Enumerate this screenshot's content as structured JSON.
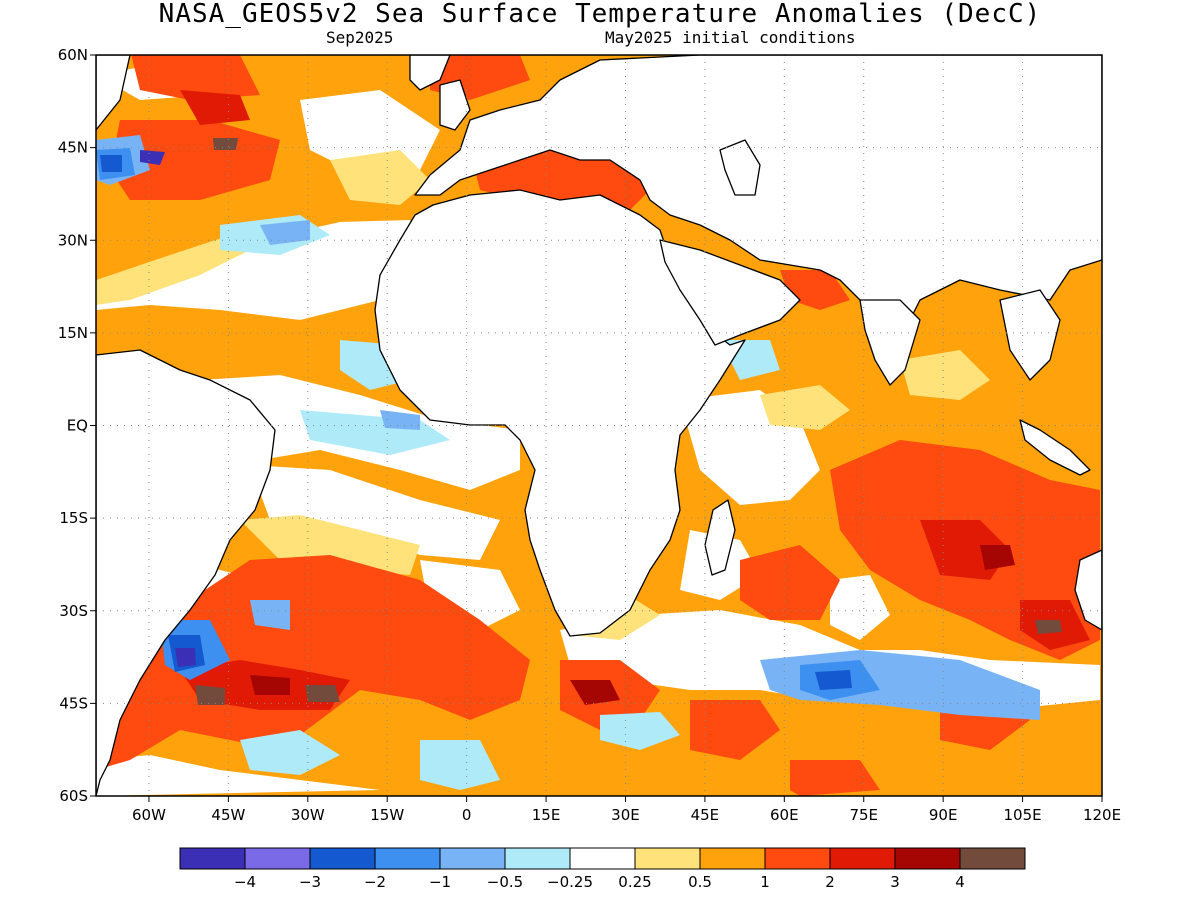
{
  "title": "NASA_GEOS5v2 Sea Surface Temperature Anomalies (DecC)",
  "subtitle_left": "Sep2025",
  "subtitle_right": "May2025 initial conditions",
  "map": {
    "lon_range": [
      -70,
      120
    ],
    "lat_range": [
      -60,
      60
    ],
    "grid": "dotted",
    "lat_ticks": [
      "60N",
      "45N",
      "30N",
      "15N",
      "EQ",
      "15S",
      "30S",
      "45S",
      "60S"
    ],
    "lon_ticks": [
      "60W",
      "45W",
      "30W",
      "15W",
      "0",
      "15E",
      "30E",
      "45E",
      "60E",
      "75E",
      "90E",
      "105E",
      "120E"
    ]
  },
  "colorbar": {
    "labels": [
      "-4",
      "-3",
      "-2",
      "-1",
      "-0.5",
      "-0.25",
      "0.25",
      "0.5",
      "1",
      "2",
      "3",
      "4"
    ],
    "colors": [
      "#3b2fb5",
      "#7b6ae8",
      "#1459cf",
      "#3d8ff0",
      "#78b4f5",
      "#aeeaf8",
      "#ffffff",
      "#ffe27a",
      "#ffa20b",
      "#ff4a10",
      "#e01a05",
      "#a50503",
      "#734b3d"
    ]
  },
  "legend_colors": {
    "land": "#ffffff",
    "coast": "#000000"
  }
}
